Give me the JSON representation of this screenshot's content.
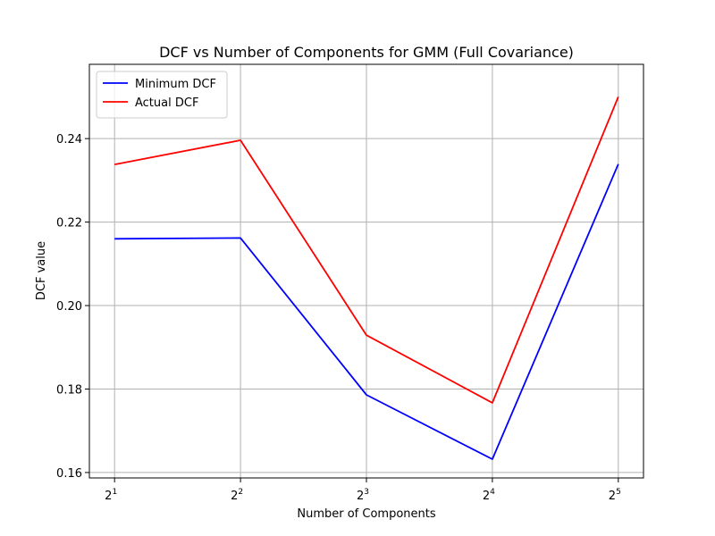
{
  "chart_data": {
    "type": "line",
    "title": "DCF vs Number of Components for GMM (Full Covariance)",
    "xlabel": "Number of Components",
    "ylabel": "DCF value",
    "x": [
      2,
      4,
      8,
      16,
      32
    ],
    "x_tick_labels": [
      {
        "base": "2",
        "exp": "1"
      },
      {
        "base": "2",
        "exp": "2"
      },
      {
        "base": "2",
        "exp": "3"
      },
      {
        "base": "2",
        "exp": "4"
      },
      {
        "base": "2",
        "exp": "5"
      }
    ],
    "xscale": "log2",
    "ylim": [
      0.1587,
      0.2578
    ],
    "yticks": [
      0.16,
      0.18,
      0.2,
      0.22,
      0.24
    ],
    "ytick_labels": [
      "0.16",
      "0.18",
      "0.20",
      "0.22",
      "0.24"
    ],
    "grid": true,
    "legend_position": "top-left",
    "series": [
      {
        "name": "Minimum DCF",
        "color": "#0000ff",
        "values": [
          0.216,
          0.2162,
          0.1786,
          0.1632,
          0.2339
        ]
      },
      {
        "name": "Actual DCF",
        "color": "#ff0000",
        "values": [
          0.2338,
          0.2396,
          0.1929,
          0.1767,
          0.25
        ]
      }
    ]
  }
}
